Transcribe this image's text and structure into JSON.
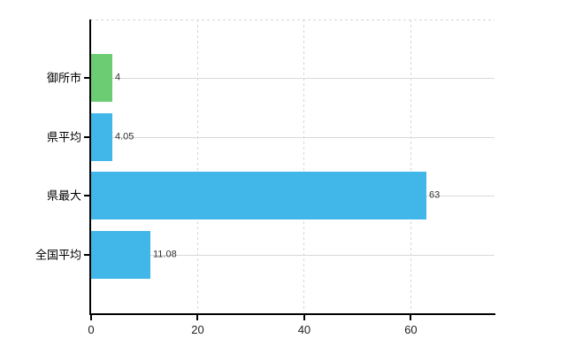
{
  "chart_data": {
    "type": "bar",
    "orientation": "horizontal",
    "title": "",
    "xlabel": "",
    "ylabel": "",
    "categories": [
      "御所市",
      "県平均",
      "県最大",
      "全国平均"
    ],
    "values": [
      4,
      4.05,
      63,
      11.08
    ],
    "value_labels": [
      "4",
      "4.05",
      "63",
      "11.08"
    ],
    "series": [
      {
        "name": "value",
        "values": [
          4,
          4.05,
          63,
          11.08
        ]
      }
    ],
    "bar_colors": [
      "#6bcc74",
      "#41b6e9",
      "#41b6e9",
      "#41b6e9"
    ],
    "x_ticks": [
      0,
      20,
      40,
      60
    ],
    "x_tick_labels": [
      "0",
      "20",
      "40",
      "60"
    ],
    "xlim": [
      0,
      75.7
    ],
    "grid": "vertical-dashed-and-horizontal-solid",
    "legend": "none"
  },
  "colors": {
    "background": "#ffffff",
    "bar_green": "#6bcc74",
    "bar_blue": "#41b6e9",
    "grid_vertical": "#d8d4d8",
    "grid_horizontal": "#d5dbd5",
    "top_border": "#d8d4d8",
    "axis": "#000000",
    "x_tick_label": "#222222",
    "value_label": "#333333",
    "y_label": "#000000"
  }
}
